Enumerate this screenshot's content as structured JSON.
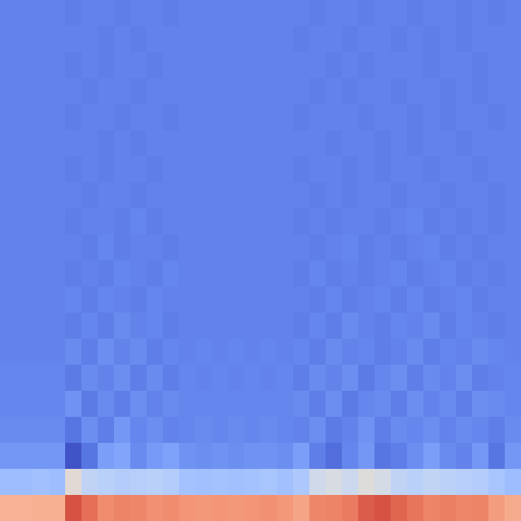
{
  "chart_data": {
    "type": "heatmap",
    "color": "coolwarm",
    "tick_labels": false,
    "color_range": [
      0,
      1
    ],
    "cells": [
      [
        0.68,
        0.68,
        0.69,
        0.69,
        0.9,
        0.84,
        0.78,
        0.8,
        0.79,
        0.77,
        0.78,
        0.76,
        0.75,
        0.76,
        0.75,
        0.76,
        0.77,
        0.75,
        0.72,
        0.79,
        0.8,
        0.82,
        0.88,
        0.9,
        0.86,
        0.83,
        0.8,
        0.81,
        0.79,
        0.8,
        0.74,
        0.7
      ],
      [
        0.3,
        0.3,
        0.31,
        0.3,
        0.52,
        0.4,
        0.38,
        0.36,
        0.37,
        0.38,
        0.36,
        0.32,
        0.31,
        0.32,
        0.31,
        0.32,
        0.33,
        0.31,
        0.34,
        0.45,
        0.48,
        0.44,
        0.5,
        0.47,
        0.4,
        0.38,
        0.41,
        0.39,
        0.37,
        0.36,
        0.33,
        0.3
      ],
      [
        0.18,
        0.18,
        0.18,
        0.18,
        0.02,
        0.1,
        0.2,
        0.22,
        0.15,
        0.19,
        0.21,
        0.17,
        0.16,
        0.17,
        0.16,
        0.17,
        0.17,
        0.16,
        0.2,
        0.12,
        0.08,
        0.14,
        0.18,
        0.1,
        0.12,
        0.16,
        0.2,
        0.15,
        0.13,
        0.18,
        0.1,
        0.18
      ],
      [
        0.15,
        0.15,
        0.15,
        0.15,
        0.1,
        0.16,
        0.12,
        0.18,
        0.14,
        0.16,
        0.13,
        0.14,
        0.15,
        0.14,
        0.15,
        0.14,
        0.15,
        0.14,
        0.13,
        0.16,
        0.11,
        0.13,
        0.17,
        0.12,
        0.15,
        0.14,
        0.16,
        0.13,
        0.15,
        0.14,
        0.12,
        0.15
      ],
      [
        0.14,
        0.14,
        0.14,
        0.14,
        0.17,
        0.11,
        0.15,
        0.12,
        0.16,
        0.13,
        0.15,
        0.14,
        0.14,
        0.14,
        0.14,
        0.14,
        0.14,
        0.14,
        0.15,
        0.12,
        0.16,
        0.11,
        0.14,
        0.15,
        0.12,
        0.16,
        0.13,
        0.15,
        0.12,
        0.16,
        0.15,
        0.14
      ],
      [
        0.14,
        0.14,
        0.14,
        0.14,
        0.11,
        0.15,
        0.13,
        0.16,
        0.12,
        0.15,
        0.12,
        0.14,
        0.13,
        0.14,
        0.13,
        0.14,
        0.13,
        0.14,
        0.12,
        0.15,
        0.13,
        0.16,
        0.11,
        0.14,
        0.16,
        0.12,
        0.15,
        0.13,
        0.16,
        0.12,
        0.13,
        0.14
      ],
      [
        0.13,
        0.13,
        0.13,
        0.13,
        0.15,
        0.12,
        0.16,
        0.13,
        0.15,
        0.12,
        0.14,
        0.13,
        0.14,
        0.13,
        0.14,
        0.13,
        0.14,
        0.13,
        0.14,
        0.12,
        0.15,
        0.13,
        0.14,
        0.12,
        0.13,
        0.15,
        0.12,
        0.14,
        0.13,
        0.15,
        0.14,
        0.13
      ],
      [
        0.13,
        0.13,
        0.13,
        0.13,
        0.12,
        0.14,
        0.12,
        0.15,
        0.13,
        0.14,
        0.12,
        0.13,
        0.13,
        0.13,
        0.13,
        0.13,
        0.13,
        0.13,
        0.12,
        0.14,
        0.12,
        0.15,
        0.13,
        0.12,
        0.14,
        0.13,
        0.15,
        0.12,
        0.14,
        0.13,
        0.12,
        0.13
      ],
      [
        0.13,
        0.13,
        0.13,
        0.13,
        0.14,
        0.12,
        0.14,
        0.13,
        0.12,
        0.14,
        0.13,
        0.13,
        0.13,
        0.13,
        0.13,
        0.13,
        0.13,
        0.13,
        0.13,
        0.12,
        0.14,
        0.12,
        0.13,
        0.14,
        0.12,
        0.14,
        0.12,
        0.13,
        0.14,
        0.12,
        0.13,
        0.13
      ],
      [
        0.13,
        0.13,
        0.13,
        0.13,
        0.12,
        0.13,
        0.12,
        0.14,
        0.13,
        0.12,
        0.14,
        0.13,
        0.13,
        0.13,
        0.13,
        0.13,
        0.13,
        0.13,
        0.12,
        0.14,
        0.12,
        0.13,
        0.12,
        0.13,
        0.14,
        0.12,
        0.13,
        0.14,
        0.12,
        0.13,
        0.12,
        0.13
      ],
      [
        0.13,
        0.13,
        0.13,
        0.13,
        0.13,
        0.12,
        0.14,
        0.12,
        0.13,
        0.13,
        0.12,
        0.13,
        0.13,
        0.13,
        0.13,
        0.13,
        0.13,
        0.13,
        0.13,
        0.12,
        0.13,
        0.14,
        0.12,
        0.13,
        0.12,
        0.13,
        0.14,
        0.12,
        0.13,
        0.12,
        0.13,
        0.13
      ],
      [
        0.13,
        0.13,
        0.13,
        0.13,
        0.12,
        0.13,
        0.13,
        0.12,
        0.14,
        0.12,
        0.13,
        0.13,
        0.13,
        0.13,
        0.13,
        0.13,
        0.13,
        0.13,
        0.12,
        0.13,
        0.12,
        0.13,
        0.13,
        0.12,
        0.13,
        0.14,
        0.12,
        0.13,
        0.12,
        0.13,
        0.12,
        0.13
      ],
      [
        0.13,
        0.13,
        0.13,
        0.13,
        0.13,
        0.12,
        0.13,
        0.13,
        0.12,
        0.13,
        0.13,
        0.13,
        0.13,
        0.13,
        0.13,
        0.13,
        0.13,
        0.13,
        0.13,
        0.12,
        0.13,
        0.12,
        0.13,
        0.13,
        0.12,
        0.13,
        0.13,
        0.12,
        0.13,
        0.13,
        0.12,
        0.13
      ],
      [
        0.13,
        0.13,
        0.13,
        0.13,
        0.12,
        0.13,
        0.12,
        0.13,
        0.13,
        0.12,
        0.13,
        0.13,
        0.13,
        0.13,
        0.13,
        0.13,
        0.13,
        0.13,
        0.12,
        0.13,
        0.13,
        0.12,
        0.13,
        0.12,
        0.13,
        0.13,
        0.12,
        0.13,
        0.13,
        0.12,
        0.13,
        0.13
      ],
      [
        0.13,
        0.13,
        0.13,
        0.13,
        0.13,
        0.13,
        0.12,
        0.13,
        0.12,
        0.13,
        0.13,
        0.13,
        0.13,
        0.13,
        0.13,
        0.13,
        0.13,
        0.13,
        0.13,
        0.13,
        0.12,
        0.13,
        0.13,
        0.12,
        0.13,
        0.12,
        0.13,
        0.13,
        0.12,
        0.13,
        0.13,
        0.13
      ],
      [
        0.13,
        0.13,
        0.13,
        0.13,
        0.12,
        0.13,
        0.13,
        0.12,
        0.13,
        0.13,
        0.12,
        0.13,
        0.13,
        0.13,
        0.13,
        0.13,
        0.13,
        0.13,
        0.12,
        0.13,
        0.13,
        0.13,
        0.12,
        0.13,
        0.13,
        0.12,
        0.13,
        0.12,
        0.13,
        0.13,
        0.12,
        0.13
      ],
      [
        0.13,
        0.13,
        0.13,
        0.13,
        0.13,
        0.12,
        0.13,
        0.13,
        0.12,
        0.13,
        0.13,
        0.13,
        0.13,
        0.13,
        0.13,
        0.13,
        0.13,
        0.13,
        0.13,
        0.12,
        0.13,
        0.12,
        0.13,
        0.13,
        0.12,
        0.13,
        0.13,
        0.12,
        0.13,
        0.12,
        0.13,
        0.13
      ],
      [
        0.13,
        0.13,
        0.13,
        0.13,
        0.12,
        0.13,
        0.12,
        0.13,
        0.13,
        0.12,
        0.13,
        0.13,
        0.13,
        0.13,
        0.13,
        0.13,
        0.13,
        0.13,
        0.13,
        0.13,
        0.12,
        0.13,
        0.12,
        0.13,
        0.13,
        0.13,
        0.12,
        0.13,
        0.13,
        0.12,
        0.13,
        0.13
      ],
      [
        0.13,
        0.13,
        0.13,
        0.13,
        0.13,
        0.13,
        0.12,
        0.13,
        0.12,
        0.13,
        0.13,
        0.13,
        0.13,
        0.13,
        0.13,
        0.13,
        0.13,
        0.13,
        0.12,
        0.13,
        0.13,
        0.12,
        0.13,
        0.13,
        0.12,
        0.13,
        0.12,
        0.13,
        0.12,
        0.13,
        0.13,
        0.13
      ],
      [
        0.13,
        0.13,
        0.13,
        0.13,
        0.12,
        0.13,
        0.13,
        0.12,
        0.13,
        0.13,
        0.12,
        0.13,
        0.13,
        0.13,
        0.13,
        0.13,
        0.13,
        0.13,
        0.13,
        0.12,
        0.13,
        0.13,
        0.12,
        0.13,
        0.13,
        0.12,
        0.13,
        0.13,
        0.12,
        0.13,
        0.12,
        0.13
      ]
    ]
  }
}
